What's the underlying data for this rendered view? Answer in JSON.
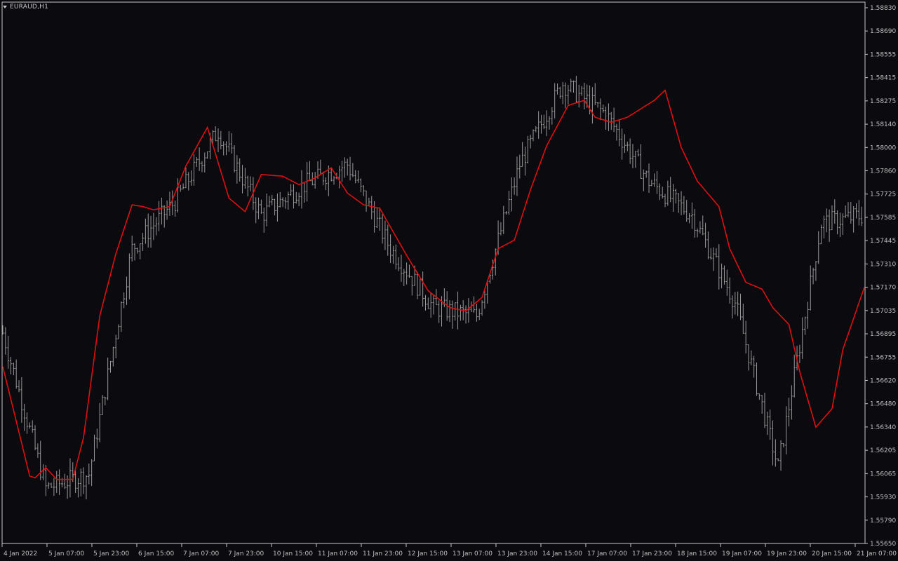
{
  "window": {
    "symbol_title": "EURAUD,H1",
    "menu_icon": "triangle-down-icon"
  },
  "colors": {
    "background": "#0a0a0f",
    "frame": "#c8c8c8",
    "candles": "#9a9a9a",
    "moving_average": "#e01010",
    "axis_text": "#c0c0c0"
  },
  "chart_data": {
    "type": "line",
    "title": "EURAUD,H1",
    "xlabel": "",
    "ylabel": "",
    "ylim": [
      1.5565,
      1.5883
    ],
    "grid": false,
    "legend": "none",
    "y_ticks": [
      "1.58830",
      "1.58690",
      "1.58555",
      "1.58415",
      "1.58275",
      "1.58140",
      "1.58000",
      "1.57860",
      "1.57725",
      "1.57585",
      "1.57445",
      "1.57310",
      "1.57170",
      "1.57035",
      "1.56895",
      "1.56755",
      "1.56620",
      "1.56480",
      "1.56340",
      "1.56205",
      "1.56065",
      "1.55930",
      "1.55790",
      "1.55650"
    ],
    "x_ticks": [
      "4 Jan 2022",
      "5 Jan 07:00",
      "5 Jan 23:00",
      "6 Jan 15:00",
      "7 Jan 07:00",
      "7 Jan 23:00",
      "10 Jan 15:00",
      "11 Jan 07:00",
      "11 Jan 23:00",
      "12 Jan 15:00",
      "13 Jan 07:00",
      "13 Jan 23:00",
      "14 Jan 15:00",
      "17 Jan 07:00",
      "17 Jan 23:00",
      "18 Jan 15:00",
      "19 Jan 07:00",
      "19 Jan 23:00",
      "20 Jan 15:00",
      "21 Jan 07:00"
    ],
    "series": [
      {
        "kind": "bars",
        "x_index": [
          0,
          16,
          32,
          48,
          64,
          80,
          96,
          112,
          128,
          144,
          160,
          176,
          192,
          208,
          224,
          240,
          256,
          272,
          288,
          304,
          320
        ],
        "values": [
          1.569,
          1.5598,
          1.5606,
          1.574,
          1.5768,
          1.581,
          1.576,
          1.5778,
          1.579,
          1.574,
          1.5705,
          1.57,
          1.579,
          1.5838,
          1.582,
          1.578,
          1.576,
          1.5708,
          1.561,
          1.5755,
          1.576
        ]
      },
      {
        "kind": "moving-average",
        "x_index": [
          0,
          10,
          12,
          16,
          20,
          26,
          30,
          36,
          42,
          48,
          52,
          56,
          62,
          68,
          76,
          84,
          90,
          96,
          104,
          110,
          116,
          122,
          128,
          134,
          140,
          150,
          158,
          166,
          172,
          178,
          184,
          190,
          196,
          202,
          210,
          216,
          220,
          226,
          232,
          236,
          242,
          246,
          252,
          258,
          266,
          270,
          276,
          282,
          286,
          292,
          296,
          302,
          308,
          312,
          320
        ],
        "values": [
          1.567,
          1.5605,
          1.5604,
          1.561,
          1.5603,
          1.5603,
          1.5628,
          1.57,
          1.5737,
          1.5766,
          1.5765,
          1.5763,
          1.5765,
          1.5789,
          1.5812,
          1.577,
          1.5762,
          1.5784,
          1.5783,
          1.5778,
          1.5782,
          1.5788,
          1.5773,
          1.5766,
          1.5764,
          1.5736,
          1.5715,
          1.5705,
          1.5703,
          1.5711,
          1.574,
          1.5745,
          1.5775,
          1.5801,
          1.5825,
          1.5828,
          1.5818,
          1.5815,
          1.5818,
          1.5822,
          1.5828,
          1.5834,
          1.58,
          1.578,
          1.5765,
          1.574,
          1.572,
          1.5716,
          1.5705,
          1.5695,
          1.5667,
          1.5634,
          1.5645,
          1.568,
          1.5717
        ]
      }
    ]
  }
}
